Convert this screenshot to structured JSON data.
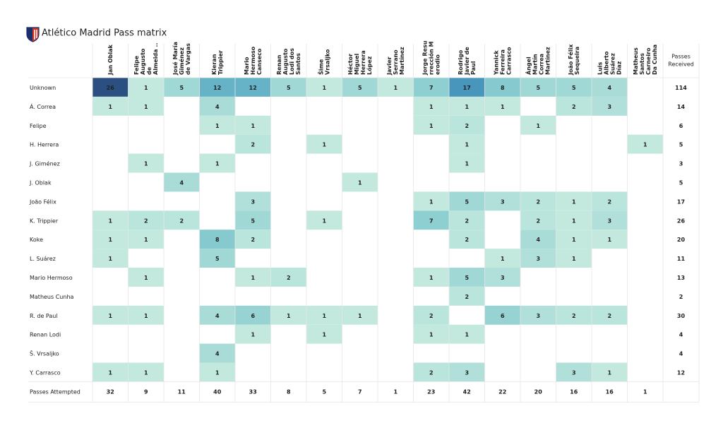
{
  "chart_data": {
    "type": "heatmap",
    "title": "Atlético Madrid Pass matrix",
    "columns": [
      [
        "Jan Oblak"
      ],
      [
        "Felipe",
        "Augusto",
        "de",
        "Almeida .."
      ],
      [
        "José María",
        "Giménez",
        "de Vargas"
      ],
      [
        "Kieran",
        "Trippier"
      ],
      [
        "Mario",
        "Hermoso",
        "Canseco"
      ],
      [
        "Renan",
        "Augusto",
        "Lodi dos",
        "Santos"
      ],
      [
        "Šime",
        "Vrsaljko"
      ],
      [
        "Héctor",
        "Miguel",
        "Herrera",
        "López"
      ],
      [
        "Javier",
        "Serrano",
        "Martínez"
      ],
      [
        "Jorge Resu",
        "rrección M",
        "erodio"
      ],
      [
        "Rodrigo",
        "Javier de",
        "Paul"
      ],
      [
        "Yannick",
        "Ferreira",
        "Carrasco"
      ],
      [
        "Ángel",
        "Martín",
        "Correa",
        "Martínez"
      ],
      [
        "João Félix",
        "Sequeira"
      ],
      [
        "Luis",
        "Alberto",
        "Suárez",
        "Díaz"
      ],
      [
        "Matheus",
        "Santos",
        "Carneiro",
        "Da Cunha"
      ]
    ],
    "rows": [
      "Unknown",
      "Á. Correa",
      "Felipe",
      "H. Herrera",
      "J. Giménez",
      "J. Oblak",
      "João Félix",
      "K. Trippier",
      "Koke",
      "L. Suárez",
      "Mario Hermoso",
      "Matheus Cunha",
      "R. de Paul",
      "Renan Lodi",
      "Š. Vrsaljko",
      "Y. Carrasco"
    ],
    "values": [
      [
        26,
        1,
        5,
        12,
        12,
        5,
        1,
        5,
        1,
        7,
        17,
        8,
        5,
        5,
        4,
        null
      ],
      [
        1,
        1,
        null,
        4,
        null,
        null,
        null,
        null,
        null,
        1,
        1,
        1,
        null,
        2,
        3,
        null
      ],
      [
        null,
        null,
        null,
        1,
        1,
        null,
        null,
        null,
        null,
        1,
        2,
        null,
        1,
        null,
        null,
        null
      ],
      [
        null,
        null,
        null,
        null,
        2,
        null,
        1,
        null,
        null,
        null,
        1,
        null,
        null,
        null,
        null,
        1
      ],
      [
        null,
        1,
        null,
        1,
        null,
        null,
        null,
        null,
        null,
        null,
        1,
        null,
        null,
        null,
        null,
        null
      ],
      [
        null,
        null,
        4,
        null,
        null,
        null,
        null,
        1,
        null,
        null,
        null,
        null,
        null,
        null,
        null,
        null
      ],
      [
        null,
        null,
        null,
        null,
        3,
        null,
        null,
        null,
        null,
        1,
        5,
        3,
        2,
        1,
        2,
        null
      ],
      [
        1,
        2,
        2,
        null,
        5,
        null,
        1,
        null,
        null,
        7,
        2,
        null,
        2,
        1,
        3,
        null
      ],
      [
        1,
        1,
        null,
        8,
        2,
        null,
        null,
        null,
        null,
        null,
        2,
        null,
        4,
        1,
        1,
        null
      ],
      [
        1,
        null,
        null,
        5,
        null,
        null,
        null,
        null,
        null,
        null,
        null,
        1,
        3,
        1,
        null,
        null
      ],
      [
        null,
        1,
        null,
        null,
        1,
        2,
        null,
        null,
        null,
        1,
        5,
        3,
        null,
        null,
        null,
        null
      ],
      [
        null,
        null,
        null,
        null,
        null,
        null,
        null,
        null,
        null,
        null,
        2,
        null,
        null,
        null,
        null,
        null
      ],
      [
        1,
        1,
        null,
        4,
        6,
        1,
        1,
        1,
        null,
        2,
        null,
        6,
        3,
        2,
        2,
        null
      ],
      [
        null,
        null,
        null,
        null,
        1,
        null,
        1,
        null,
        null,
        1,
        1,
        null,
        null,
        null,
        null,
        null
      ],
      [
        null,
        null,
        null,
        4,
        null,
        null,
        null,
        null,
        null,
        null,
        null,
        null,
        null,
        null,
        null,
        null
      ],
      [
        1,
        1,
        null,
        1,
        null,
        null,
        null,
        null,
        null,
        2,
        3,
        null,
        null,
        3,
        1,
        null
      ]
    ],
    "row_totals_label": [
      "Passes",
      "Received"
    ],
    "row_totals": [
      114,
      14,
      6,
      5,
      3,
      5,
      17,
      26,
      20,
      11,
      13,
      2,
      30,
      4,
      4,
      12
    ],
    "column_totals_label": "Passes Attempted",
    "column_totals": [
      32,
      9,
      11,
      40,
      33,
      8,
      5,
      7,
      1,
      23,
      42,
      22,
      20,
      16,
      16,
      1
    ],
    "color_scale": [
      "#c3e9de",
      "#8cced0",
      "#5aaac6",
      "#3a86b5",
      "#2b4f80"
    ]
  }
}
